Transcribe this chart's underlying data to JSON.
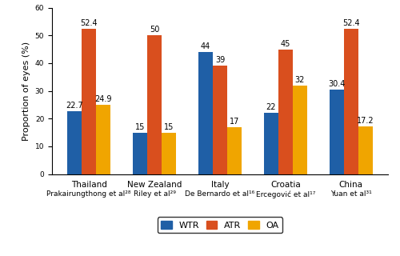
{
  "groups": [
    {
      "country": "Thailand",
      "author": "Prakairungthong et al²⁸",
      "WTR": 22.7,
      "ATR": 52.4,
      "OA": 24.9
    },
    {
      "country": "New Zealand",
      "author": "Riley et al²⁹",
      "WTR": 15,
      "ATR": 50,
      "OA": 15
    },
    {
      "country": "Italy",
      "author": "De Bernardo et al¹⁶",
      "WTR": 44,
      "ATR": 39,
      "OA": 17
    },
    {
      "country": "Croatia",
      "author": "Ercegović et al¹⁷",
      "WTR": 22,
      "ATR": 45,
      "OA": 32
    },
    {
      "country": "China",
      "author": "Yuan et al³¹",
      "WTR": 30.4,
      "ATR": 52.4,
      "OA": 17.2
    }
  ],
  "colors": {
    "WTR": "#1F5FA6",
    "ATR": "#D94F1E",
    "OA": "#F0A500"
  },
  "ylabel": "Proportion of eyes (%)",
  "ylim": [
    0,
    60
  ],
  "yticks": [
    0,
    10,
    20,
    30,
    40,
    50,
    60
  ],
  "bar_width": 0.22,
  "legend_labels": [
    "WTR",
    "ATR",
    "OA"
  ],
  "ylabel_fontsize": 8,
  "value_fontsize": 7.0,
  "tick_fontsize": 6.5,
  "xtick_country_fontsize": 7.5,
  "xtick_author_fontsize": 6.5
}
